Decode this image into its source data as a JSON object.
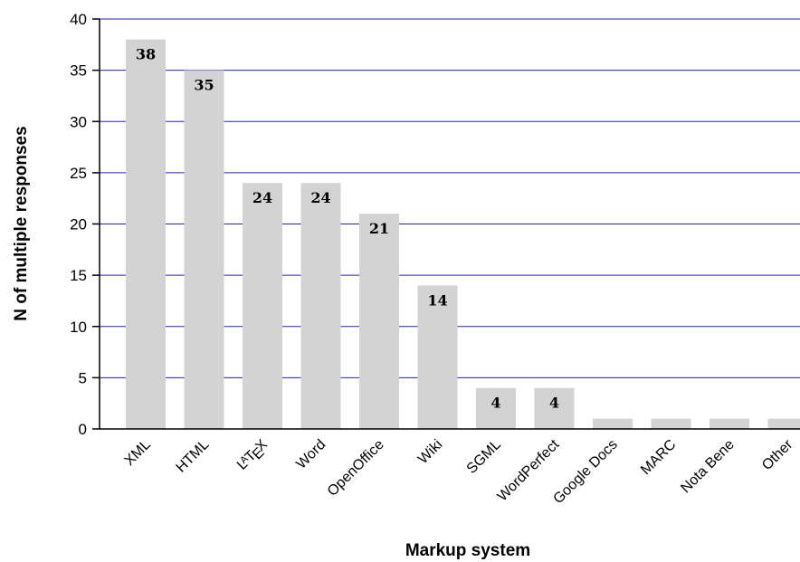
{
  "chart_data": {
    "type": "bar",
    "title": "",
    "xlabel": "Markup system",
    "ylabel": "N of multiple responses",
    "categories": [
      "XML",
      "HTML",
      "LaTeX",
      "Word",
      "OpenOffice",
      "Wiki",
      "SGML",
      "WordPerfect",
      "Google Docs",
      "MARC",
      "Nota Bene",
      "Other"
    ],
    "values": [
      38,
      35,
      24,
      24,
      21,
      14,
      4,
      4,
      1,
      1,
      1,
      1
    ],
    "data_labels": [
      "38",
      "35",
      "24",
      "24",
      "21",
      "14",
      "4",
      "4",
      "",
      "",
      "",
      ""
    ],
    "ylim": [
      0,
      40
    ],
    "yticks": [
      "0",
      "5",
      "10",
      "15",
      "20",
      "25",
      "30",
      "35",
      "40"
    ],
    "grid": true,
    "legend": "none",
    "colors": {
      "bar": "#d3d3d3",
      "grid": "#2222bb",
      "axis": "#000000"
    }
  }
}
